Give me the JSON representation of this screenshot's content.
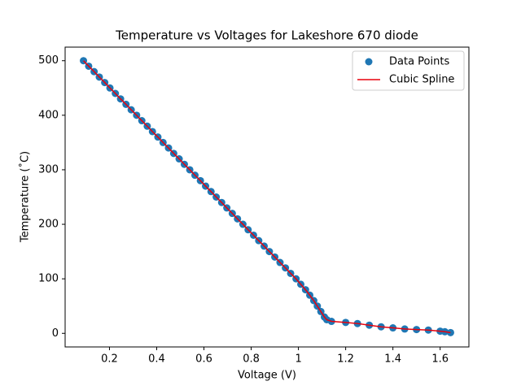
{
  "chart_data": {
    "type": "scatter",
    "title": "Temperature vs Voltages for Lakeshore 670 diode",
    "x_label": "Voltage (V)",
    "y_label": "Temperature (˚C)",
    "x": [
      0.09,
      0.112,
      0.135,
      0.157,
      0.18,
      0.202,
      0.225,
      0.247,
      0.27,
      0.292,
      0.315,
      0.337,
      0.36,
      0.382,
      0.405,
      0.427,
      0.45,
      0.472,
      0.495,
      0.517,
      0.54,
      0.562,
      0.585,
      0.607,
      0.63,
      0.652,
      0.675,
      0.697,
      0.72,
      0.742,
      0.765,
      0.787,
      0.81,
      0.832,
      0.855,
      0.877,
      0.9,
      0.922,
      0.945,
      0.967,
      0.99,
      1.01,
      1.03,
      1.048,
      1.065,
      1.08,
      1.095,
      1.11,
      1.12,
      1.14,
      1.2,
      1.25,
      1.3,
      1.35,
      1.4,
      1.45,
      1.5,
      1.55,
      1.6,
      1.62,
      1.644
    ],
    "series": [
      {
        "name": "Data Points",
        "color": "#1f77b4",
        "mode": "markers",
        "values": [
          500,
          490,
          480,
          470,
          460,
          450,
          440,
          430,
          420,
          410,
          400,
          390,
          380,
          370,
          360,
          350,
          340,
          330,
          320,
          310,
          300,
          290,
          280,
          270,
          260,
          250,
          240,
          230,
          220,
          210,
          200,
          190,
          180,
          170,
          160,
          150,
          140,
          130,
          120,
          110,
          100,
          90,
          80,
          70,
          60,
          50,
          40,
          30,
          25,
          22,
          20,
          18,
          15,
          12,
          10,
          8,
          7,
          6,
          4,
          3,
          1.4
        ]
      },
      {
        "name": "Cubic Spline",
        "color": "#e8000b",
        "mode": "line",
        "values": [
          500,
          490,
          480,
          470,
          460,
          450,
          440,
          430,
          420,
          410,
          400,
          390,
          380,
          370,
          360,
          350,
          340,
          330,
          320,
          310,
          300,
          290,
          280,
          270,
          260,
          250,
          240,
          230,
          220,
          210,
          200,
          190,
          180,
          170,
          160,
          150,
          140,
          130,
          120,
          110,
          100,
          90,
          80,
          70,
          60,
          50,
          40,
          30,
          25,
          22,
          20,
          18,
          15,
          12,
          10,
          8,
          7,
          6,
          4,
          3,
          1.4
        ]
      }
    ],
    "xlim": [
      0.0123,
      1.7217
    ],
    "ylim": [
      -24.93,
      524.93
    ],
    "xticks": [
      0.2,
      0.4,
      0.6,
      0.8,
      1.0,
      1.2,
      1.4,
      1.6
    ],
    "yticks": [
      0,
      100,
      200,
      300,
      400,
      500
    ],
    "legend": "upper right"
  }
}
